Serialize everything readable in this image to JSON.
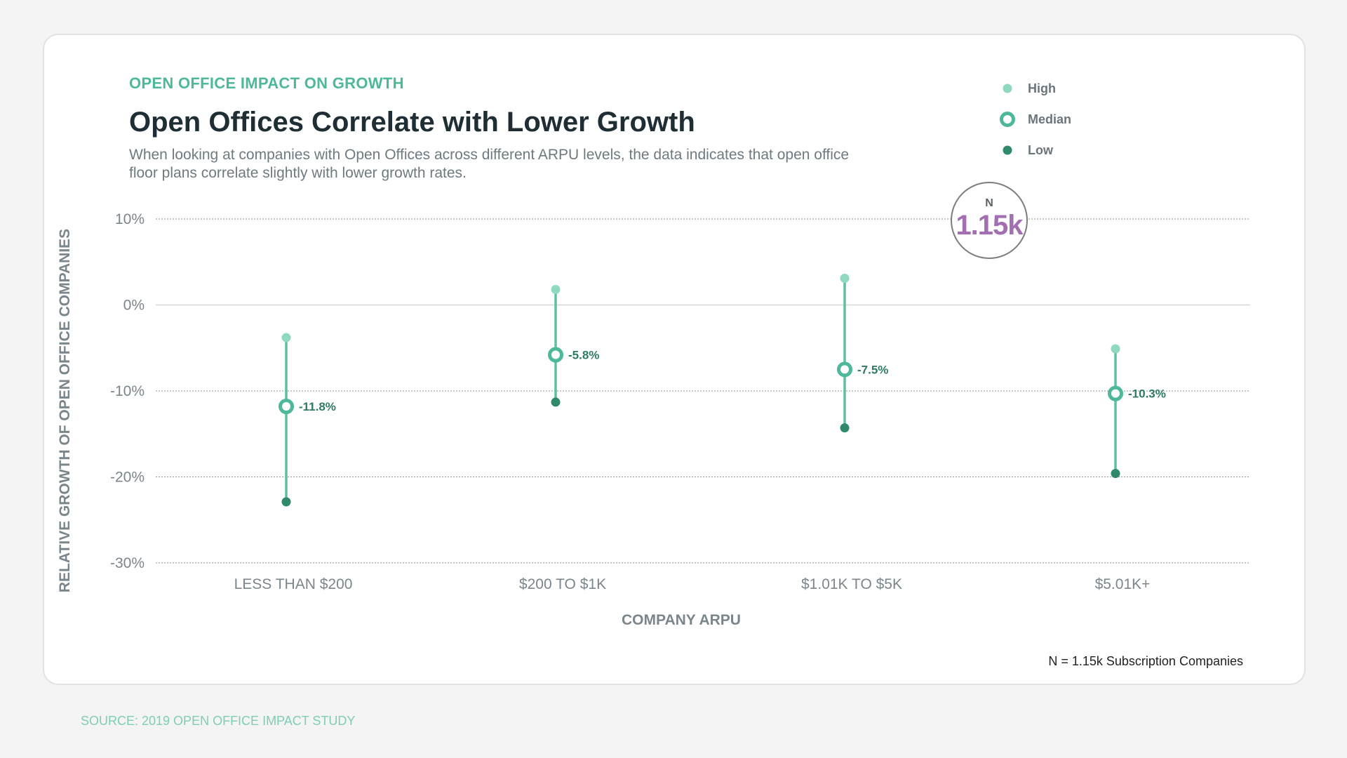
{
  "eyebrow": "OPEN OFFICE IMPACT ON GROWTH",
  "title": "Open Offices Correlate with Lower Growth",
  "subtitle": "When looking at companies with Open Offices across different ARPU levels, the data indicates that open office floor plans correlate slightly with lower growth rates.",
  "legend": {
    "high": "High",
    "median": "Median",
    "low": "Low"
  },
  "badge": {
    "label": "N",
    "value": "1.15k"
  },
  "footnote": "N = 1.15k Subscription Companies",
  "source": "SOURCE: 2019 OPEN OFFICE IMPACT STUDY",
  "colors": {
    "high": "#8fd9c0",
    "median": "#4db89a",
    "low": "#2f8a6c",
    "line": "#5ebfa2",
    "axis_text": "#7b868c",
    "label_text": "#2f7a62",
    "badge_value": "#a26fb3"
  },
  "chart_data": {
    "type": "range-dot",
    "title": "Open Offices Correlate with Lower Growth",
    "xlabel": "COMPANY ARPU",
    "ylabel": "RELATIVE GROWTH OF OPEN OFFICE COMPANIES",
    "ylim": [
      -30,
      10
    ],
    "yticks": [
      10,
      0,
      -10,
      -20,
      -30
    ],
    "ytick_labels": [
      "10%",
      "0%",
      "-10%",
      "-20%",
      "-30%"
    ],
    "grid": true,
    "legend_position": "top-right",
    "categories": [
      "LESS THAN $200",
      "$200 TO $1K",
      "$1.01K TO $5K",
      "$5.01K+"
    ],
    "series": [
      {
        "name": "High",
        "values": [
          -3.8,
          1.8,
          3.1,
          -5.1
        ]
      },
      {
        "name": "Median",
        "values": [
          -11.8,
          -5.8,
          -7.5,
          -10.3
        ]
      },
      {
        "name": "Low",
        "values": [
          -22.9,
          -11.3,
          -14.3,
          -19.6
        ]
      }
    ],
    "median_labels": [
      "-11.8%",
      "-5.8%",
      "-7.5%",
      "-10.3%"
    ]
  }
}
